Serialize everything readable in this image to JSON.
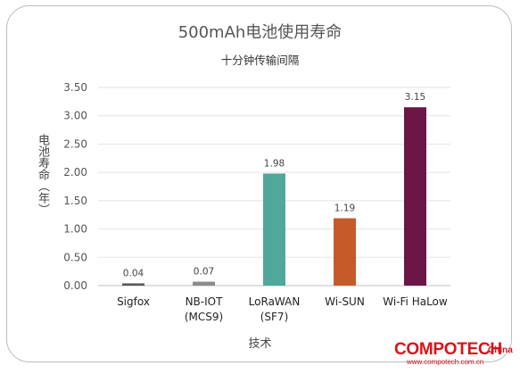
{
  "chart_data": {
    "type": "bar",
    "title": "500mAh电池使用寿命",
    "subtitle": "十分钟传输间隔",
    "xlabel": "技术",
    "ylabel": "电池寿命（年）",
    "categories": [
      {
        "line1": "Sigfox",
        "line2": ""
      },
      {
        "line1": "NB-IOT",
        "line2": "(MCS9)"
      },
      {
        "line1": "LoRaWAN",
        "line2": "(SF7)"
      },
      {
        "line1": "Wi-SUN",
        "line2": ""
      },
      {
        "line1": "Wi-Fi HaLow",
        "line2": ""
      }
    ],
    "values": [
      0.04,
      0.07,
      1.98,
      1.19,
      3.15
    ],
    "value_labels": [
      "0.04",
      "0.07",
      "1.98",
      "1.19",
      "3.15"
    ],
    "bar_colors": [
      "#595959",
      "#8c8c8c",
      "#4fa89a",
      "#c65a2a",
      "#6b1646"
    ],
    "ylim": [
      0,
      3.5
    ],
    "yticks": [
      "0.00",
      "0.50",
      "1.00",
      "1.50",
      "2.00",
      "2.50",
      "3.00",
      "3.50"
    ],
    "grid": true,
    "legend": "none"
  },
  "watermark": {
    "brand": "COMPOTECH",
    "suffix": "China",
    "url": "www.compotech.com.cn"
  }
}
